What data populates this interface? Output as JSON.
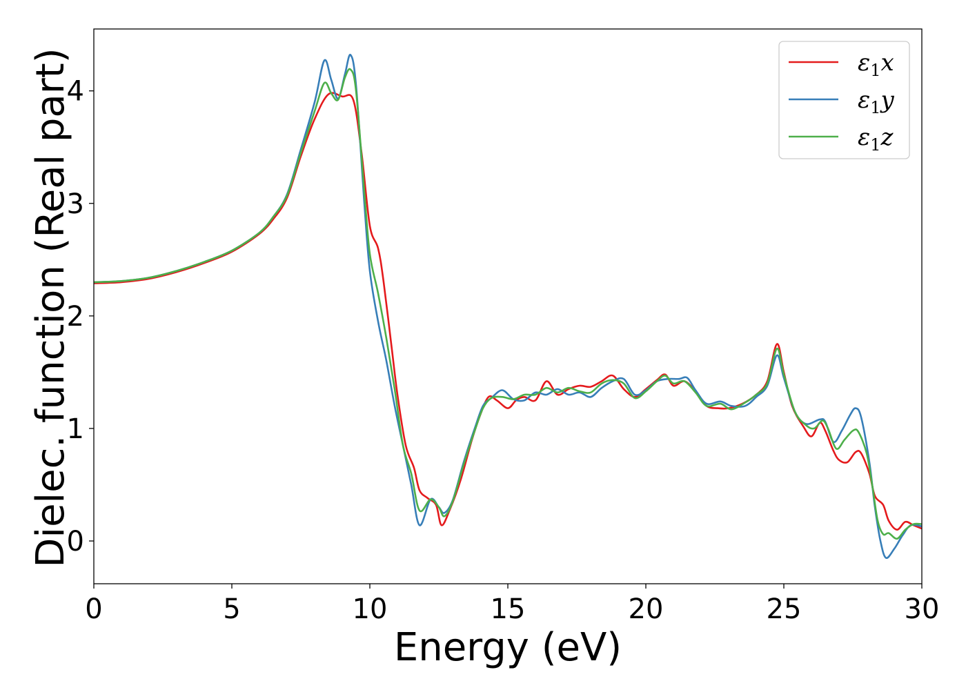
{
  "chart_data": {
    "type": "line",
    "xlabel": "Energy (eV)",
    "ylabel": "Dielec. function (Real part)",
    "xlim": [
      0,
      30
    ],
    "ylim": [
      -0.38,
      4.55
    ],
    "xticks": [
      0,
      5,
      10,
      15,
      20,
      25,
      30
    ],
    "yticks": [
      0,
      1,
      2,
      3,
      4
    ],
    "grid": false,
    "legend_position": "top-right",
    "series": [
      {
        "name": "ε₁x",
        "legend_base": "ε",
        "legend_sub": "1",
        "legend_var": "x",
        "color": "#e41a1c",
        "points": [
          [
            0,
            2.29
          ],
          [
            1,
            2.3
          ],
          [
            2,
            2.33
          ],
          [
            3,
            2.39
          ],
          [
            4,
            2.47
          ],
          [
            5,
            2.57
          ],
          [
            6,
            2.73
          ],
          [
            6.5,
            2.86
          ],
          [
            7,
            3.05
          ],
          [
            7.5,
            3.42
          ],
          [
            8,
            3.75
          ],
          [
            8.5,
            3.97
          ],
          [
            9,
            3.95
          ],
          [
            9.4,
            3.92
          ],
          [
            9.7,
            3.45
          ],
          [
            10,
            2.8
          ],
          [
            10.3,
            2.6
          ],
          [
            10.5,
            2.3
          ],
          [
            10.8,
            1.7
          ],
          [
            11,
            1.3
          ],
          [
            11.3,
            0.85
          ],
          [
            11.6,
            0.65
          ],
          [
            11.8,
            0.45
          ],
          [
            12.1,
            0.38
          ],
          [
            12.4,
            0.32
          ],
          [
            12.6,
            0.14
          ],
          [
            12.9,
            0.28
          ],
          [
            13.3,
            0.55
          ],
          [
            13.7,
            0.9
          ],
          [
            14,
            1.12
          ],
          [
            14.3,
            1.28
          ],
          [
            14.6,
            1.25
          ],
          [
            15,
            1.18
          ],
          [
            15.3,
            1.25
          ],
          [
            15.6,
            1.28
          ],
          [
            16,
            1.25
          ],
          [
            16.4,
            1.42
          ],
          [
            16.8,
            1.3
          ],
          [
            17.2,
            1.35
          ],
          [
            17.6,
            1.38
          ],
          [
            18,
            1.37
          ],
          [
            18.4,
            1.42
          ],
          [
            18.8,
            1.47
          ],
          [
            19.2,
            1.35
          ],
          [
            19.6,
            1.28
          ],
          [
            20,
            1.35
          ],
          [
            20.4,
            1.43
          ],
          [
            20.7,
            1.48
          ],
          [
            21,
            1.38
          ],
          [
            21.4,
            1.42
          ],
          [
            21.8,
            1.33
          ],
          [
            22.2,
            1.2
          ],
          [
            22.6,
            1.18
          ],
          [
            23,
            1.18
          ],
          [
            23.5,
            1.22
          ],
          [
            24,
            1.3
          ],
          [
            24.4,
            1.42
          ],
          [
            24.75,
            1.75
          ],
          [
            25,
            1.5
          ],
          [
            25.3,
            1.2
          ],
          [
            25.7,
            1.02
          ],
          [
            26,
            0.93
          ],
          [
            26.3,
            1.05
          ],
          [
            26.5,
            0.98
          ],
          [
            26.8,
            0.8
          ],
          [
            27,
            0.72
          ],
          [
            27.3,
            0.7
          ],
          [
            27.6,
            0.79
          ],
          [
            27.8,
            0.78
          ],
          [
            28.1,
            0.6
          ],
          [
            28.3,
            0.4
          ],
          [
            28.6,
            0.32
          ],
          [
            28.8,
            0.18
          ],
          [
            29.1,
            0.1
          ],
          [
            29.4,
            0.17
          ],
          [
            29.7,
            0.14
          ],
          [
            30,
            0.11
          ]
        ]
      },
      {
        "name": "ε₁y",
        "legend_base": "ε",
        "legend_sub": "1",
        "legend_var": "y",
        "color": "#377eb8",
        "points": [
          [
            0,
            2.3
          ],
          [
            1,
            2.31
          ],
          [
            2,
            2.34
          ],
          [
            3,
            2.4
          ],
          [
            4,
            2.48
          ],
          [
            5,
            2.58
          ],
          [
            6,
            2.74
          ],
          [
            6.5,
            2.88
          ],
          [
            7,
            3.08
          ],
          [
            7.5,
            3.48
          ],
          [
            8,
            3.9
          ],
          [
            8.35,
            4.27
          ],
          [
            8.6,
            4.1
          ],
          [
            8.85,
            3.93
          ],
          [
            9.1,
            4.15
          ],
          [
            9.3,
            4.32
          ],
          [
            9.5,
            4.05
          ],
          [
            9.8,
            3.0
          ],
          [
            10,
            2.4
          ],
          [
            10.3,
            1.95
          ],
          [
            10.6,
            1.6
          ],
          [
            10.9,
            1.2
          ],
          [
            11.2,
            0.85
          ],
          [
            11.5,
            0.5
          ],
          [
            11.8,
            0.14
          ],
          [
            12.2,
            0.37
          ],
          [
            12.5,
            0.3
          ],
          [
            12.7,
            0.25
          ],
          [
            13,
            0.36
          ],
          [
            13.4,
            0.7
          ],
          [
            13.8,
            1.0
          ],
          [
            14.1,
            1.2
          ],
          [
            14.4,
            1.27
          ],
          [
            14.8,
            1.34
          ],
          [
            15.2,
            1.26
          ],
          [
            15.6,
            1.25
          ],
          [
            16,
            1.32
          ],
          [
            16.4,
            1.3
          ],
          [
            16.8,
            1.35
          ],
          [
            17.2,
            1.3
          ],
          [
            17.6,
            1.32
          ],
          [
            18,
            1.28
          ],
          [
            18.4,
            1.36
          ],
          [
            18.8,
            1.42
          ],
          [
            19.2,
            1.44
          ],
          [
            19.6,
            1.3
          ],
          [
            20,
            1.34
          ],
          [
            20.4,
            1.42
          ],
          [
            20.8,
            1.44
          ],
          [
            21.2,
            1.44
          ],
          [
            21.5,
            1.45
          ],
          [
            21.8,
            1.34
          ],
          [
            22.2,
            1.22
          ],
          [
            22.7,
            1.24
          ],
          [
            23.1,
            1.2
          ],
          [
            23.6,
            1.2
          ],
          [
            24,
            1.28
          ],
          [
            24.4,
            1.38
          ],
          [
            24.75,
            1.65
          ],
          [
            25,
            1.45
          ],
          [
            25.4,
            1.15
          ],
          [
            25.8,
            1.04
          ],
          [
            26.3,
            1.08
          ],
          [
            26.5,
            1.06
          ],
          [
            26.8,
            0.88
          ],
          [
            27.1,
            0.98
          ],
          [
            27.4,
            1.12
          ],
          [
            27.6,
            1.18
          ],
          [
            27.8,
            1.1
          ],
          [
            28.1,
            0.7
          ],
          [
            28.3,
            0.3
          ],
          [
            28.5,
            0.0
          ],
          [
            28.7,
            -0.15
          ],
          [
            29,
            -0.07
          ],
          [
            29.3,
            0.05
          ],
          [
            29.6,
            0.14
          ],
          [
            30,
            0.13
          ]
        ]
      },
      {
        "name": "ε₁z",
        "legend_base": "ε",
        "legend_sub": "1",
        "legend_var": "z",
        "color": "#4daf4a",
        "points": [
          [
            0,
            2.3
          ],
          [
            1,
            2.31
          ],
          [
            2,
            2.34
          ],
          [
            3,
            2.4
          ],
          [
            4,
            2.48
          ],
          [
            5,
            2.58
          ],
          [
            6,
            2.74
          ],
          [
            6.5,
            2.88
          ],
          [
            7,
            3.07
          ],
          [
            7.5,
            3.45
          ],
          [
            8,
            3.82
          ],
          [
            8.35,
            4.07
          ],
          [
            8.6,
            3.98
          ],
          [
            8.85,
            3.92
          ],
          [
            9.1,
            4.12
          ],
          [
            9.3,
            4.19
          ],
          [
            9.5,
            4.0
          ],
          [
            9.8,
            3.1
          ],
          [
            10,
            2.55
          ],
          [
            10.3,
            2.2
          ],
          [
            10.6,
            1.8
          ],
          [
            10.9,
            1.35
          ],
          [
            11.2,
            0.85
          ],
          [
            11.5,
            0.6
          ],
          [
            11.8,
            0.27
          ],
          [
            12.2,
            0.37
          ],
          [
            12.5,
            0.3
          ],
          [
            12.7,
            0.22
          ],
          [
            13,
            0.35
          ],
          [
            13.4,
            0.68
          ],
          [
            13.8,
            0.98
          ],
          [
            14.1,
            1.18
          ],
          [
            14.4,
            1.27
          ],
          [
            14.8,
            1.28
          ],
          [
            15.2,
            1.26
          ],
          [
            15.6,
            1.3
          ],
          [
            16,
            1.3
          ],
          [
            16.4,
            1.36
          ],
          [
            16.8,
            1.32
          ],
          [
            17.2,
            1.36
          ],
          [
            17.6,
            1.33
          ],
          [
            18,
            1.32
          ],
          [
            18.4,
            1.4
          ],
          [
            18.8,
            1.43
          ],
          [
            19.2,
            1.4
          ],
          [
            19.6,
            1.27
          ],
          [
            20,
            1.33
          ],
          [
            20.4,
            1.42
          ],
          [
            20.7,
            1.47
          ],
          [
            21,
            1.4
          ],
          [
            21.4,
            1.42
          ],
          [
            21.8,
            1.32
          ],
          [
            22.2,
            1.2
          ],
          [
            22.7,
            1.22
          ],
          [
            23.1,
            1.17
          ],
          [
            23.6,
            1.23
          ],
          [
            24,
            1.3
          ],
          [
            24.4,
            1.4
          ],
          [
            24.75,
            1.71
          ],
          [
            25,
            1.48
          ],
          [
            25.4,
            1.15
          ],
          [
            25.8,
            1.03
          ],
          [
            26.1,
            1.0
          ],
          [
            26.4,
            1.07
          ],
          [
            26.6,
            1.0
          ],
          [
            26.9,
            0.82
          ],
          [
            27.2,
            0.9
          ],
          [
            27.5,
            0.98
          ],
          [
            27.7,
            0.97
          ],
          [
            28,
            0.78
          ],
          [
            28.2,
            0.5
          ],
          [
            28.4,
            0.18
          ],
          [
            28.6,
            0.06
          ],
          [
            28.8,
            0.07
          ],
          [
            29.1,
            0.02
          ],
          [
            29.4,
            0.1
          ],
          [
            29.7,
            0.15
          ],
          [
            30,
            0.15
          ]
        ]
      }
    ]
  }
}
